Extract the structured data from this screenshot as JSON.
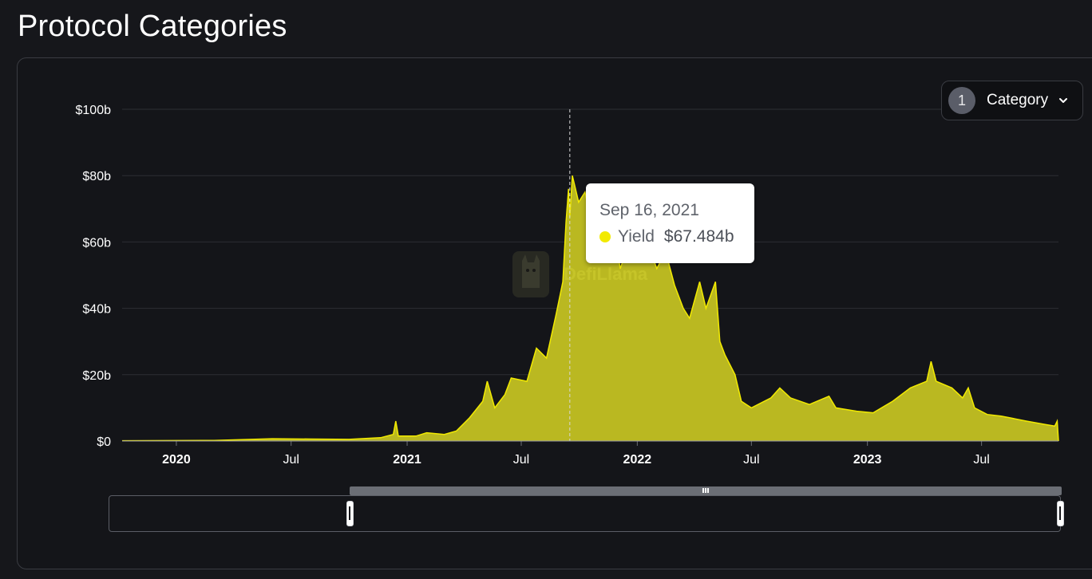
{
  "page": {
    "title": "Protocol Categories"
  },
  "category_selector": {
    "count": "1",
    "label": "Category"
  },
  "tooltip": {
    "date": "Sep 16, 2021",
    "series_name": "Yield",
    "value": "$67.484b"
  },
  "watermark": {
    "text": "DefiLlama"
  },
  "colors": {
    "series": "#f2ea00",
    "area": "#bebc22",
    "background": "#16171b"
  },
  "chart_data": {
    "type": "area",
    "title": "Protocol Categories",
    "xlabel": "",
    "ylabel": "",
    "ylim": [
      0,
      100
    ],
    "y_unit": "billions USD",
    "y_ticks": [
      "$0",
      "$20b",
      "$40b",
      "$60b",
      "$80b",
      "$100b"
    ],
    "x_ticks": [
      {
        "label": "2020",
        "date": "2020-01-01",
        "bold": true
      },
      {
        "label": "Jul",
        "date": "2020-07-01",
        "bold": false
      },
      {
        "label": "2021",
        "date": "2021-01-01",
        "bold": true
      },
      {
        "label": "Jul",
        "date": "2021-07-01",
        "bold": false
      },
      {
        "label": "2022",
        "date": "2022-01-01",
        "bold": true
      },
      {
        "label": "Jul",
        "date": "2022-07-01",
        "bold": false
      },
      {
        "label": "2023",
        "date": "2023-01-01",
        "bold": true
      },
      {
        "label": "Jul",
        "date": "2023-07-01",
        "bold": false
      }
    ],
    "x_range": [
      "2019-10-07",
      "2023-10-31"
    ],
    "grid": true,
    "legend": "none",
    "hover_date": "2021-09-16",
    "series": [
      {
        "name": "Yield",
        "points": [
          [
            "2019-10-07",
            0.1
          ],
          [
            "2020-03-01",
            0.2
          ],
          [
            "2020-06-01",
            0.7
          ],
          [
            "2020-08-01",
            0.6
          ],
          [
            "2020-10-01",
            0.5
          ],
          [
            "2020-11-20",
            1.0
          ],
          [
            "2020-12-10",
            2.0
          ],
          [
            "2020-12-14",
            6.0
          ],
          [
            "2020-12-18",
            1.5
          ],
          [
            "2021-01-15",
            1.5
          ],
          [
            "2021-02-01",
            2.5
          ],
          [
            "2021-03-01",
            2.0
          ],
          [
            "2021-03-20",
            3.0
          ],
          [
            "2021-04-10",
            7.0
          ],
          [
            "2021-05-01",
            12.0
          ],
          [
            "2021-05-08",
            18.0
          ],
          [
            "2021-05-20",
            10.0
          ],
          [
            "2021-06-05",
            14.0
          ],
          [
            "2021-06-15",
            19.0
          ],
          [
            "2021-07-10",
            18.0
          ],
          [
            "2021-07-25",
            28.0
          ],
          [
            "2021-08-10",
            25.0
          ],
          [
            "2021-08-25",
            38.0
          ],
          [
            "2021-09-05",
            48.0
          ],
          [
            "2021-09-10",
            66.0
          ],
          [
            "2021-09-14",
            76.0
          ],
          [
            "2021-09-16",
            67.5
          ],
          [
            "2021-09-20",
            80.0
          ],
          [
            "2021-09-30",
            72.0
          ],
          [
            "2021-10-10",
            75.0
          ],
          [
            "2021-10-20",
            66.0
          ],
          [
            "2021-10-30",
            55.0
          ],
          [
            "2021-11-10",
            70.0
          ],
          [
            "2021-11-25",
            64.0
          ],
          [
            "2021-12-05",
            52.0
          ],
          [
            "2021-12-20",
            60.0
          ],
          [
            "2022-01-05",
            70.0
          ],
          [
            "2022-01-20",
            58.0
          ],
          [
            "2022-02-01",
            52.0
          ],
          [
            "2022-02-15",
            57.0
          ],
          [
            "2022-03-01",
            47.0
          ],
          [
            "2022-03-15",
            40.0
          ],
          [
            "2022-03-25",
            37.0
          ],
          [
            "2022-04-10",
            48.0
          ],
          [
            "2022-04-20",
            40.0
          ],
          [
            "2022-05-05",
            48.0
          ],
          [
            "2022-05-12",
            30.0
          ],
          [
            "2022-05-20",
            26.0
          ],
          [
            "2022-06-05",
            20.0
          ],
          [
            "2022-06-15",
            12.0
          ],
          [
            "2022-07-01",
            10.0
          ],
          [
            "2022-08-01",
            13.0
          ],
          [
            "2022-08-15",
            16.0
          ],
          [
            "2022-09-01",
            13.0
          ],
          [
            "2022-10-01",
            11.0
          ],
          [
            "2022-11-01",
            13.5
          ],
          [
            "2022-11-12",
            10.0
          ],
          [
            "2022-12-15",
            9.0
          ],
          [
            "2023-01-10",
            8.5
          ],
          [
            "2023-02-10",
            12.0
          ],
          [
            "2023-03-10",
            16.0
          ],
          [
            "2023-04-05",
            18.0
          ],
          [
            "2023-04-12",
            24.0
          ],
          [
            "2023-04-20",
            18.0
          ],
          [
            "2023-05-15",
            16.0
          ],
          [
            "2023-06-01",
            13.0
          ],
          [
            "2023-06-10",
            16.0
          ],
          [
            "2023-06-20",
            10.0
          ],
          [
            "2023-07-10",
            8.0
          ],
          [
            "2023-08-01",
            7.5
          ],
          [
            "2023-08-15",
            7.0
          ],
          [
            "2023-09-10",
            6.0
          ],
          [
            "2023-10-10",
            5.0
          ],
          [
            "2023-10-25",
            4.5
          ],
          [
            "2023-10-29",
            6.0
          ],
          [
            "2023-10-31",
            0.0
          ]
        ]
      }
    ]
  }
}
